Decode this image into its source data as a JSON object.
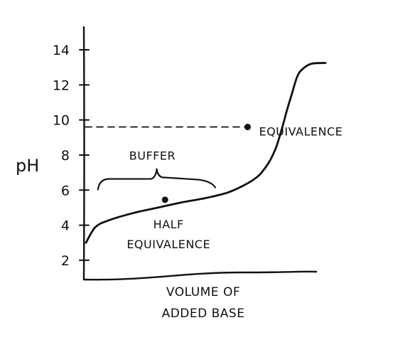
{
  "chart_data": {
    "type": "line",
    "title": "",
    "ylabel": "pH",
    "xlabel_lines": [
      "VOLUME OF",
      "ADDED BASE"
    ],
    "yticks": [
      2,
      4,
      6,
      8,
      10,
      12,
      14
    ],
    "ylim": [
      0.9,
      15.3
    ],
    "xlim": [
      0,
      100
    ],
    "grid": false,
    "series": [
      {
        "x": [
          0,
          4,
          10,
          20,
          30,
          40,
          50,
          60,
          70,
          75,
          79,
          82,
          84,
          86,
          88,
          90,
          94,
          100
        ],
        "y": [
          3.0,
          3.9,
          4.3,
          4.7,
          5.0,
          5.3,
          5.55,
          5.9,
          6.6,
          7.3,
          8.3,
          9.6,
          10.6,
          11.5,
          12.4,
          12.85,
          13.2,
          13.25
        ]
      }
    ],
    "points": [
      {
        "label_lines": [
          "HALF",
          "EQUIVALENCE"
        ],
        "x": 33,
        "y": 5.45
      },
      {
        "label_lines": [
          "EQUIVALENCE"
        ],
        "x": 67.5,
        "y": 9.6
      }
    ],
    "reference_line": {
      "y": 9.6,
      "style": "dashed"
    },
    "annotations": [
      {
        "text": "BUFFER",
        "x_range": [
          5,
          54
        ],
        "y": 6.8
      }
    ]
  }
}
